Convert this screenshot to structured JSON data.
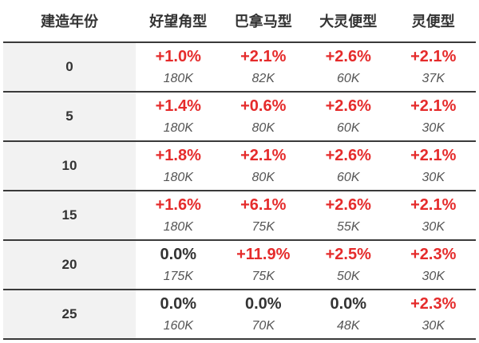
{
  "colors": {
    "increase": "#e52b2b",
    "neutral": "#333333",
    "year_cell_bg": "#f2f2f2",
    "row_border": "#3a3a3a"
  },
  "table": {
    "headers": [
      "建造年份",
      "好望角型",
      "巴拿马型",
      "大灵便型",
      "灵便型"
    ],
    "rows": [
      {
        "year": "0",
        "cells": [
          {
            "change": "+1.0%",
            "value": "180K"
          },
          {
            "change": "+2.1%",
            "value": "82K"
          },
          {
            "change": "+2.6%",
            "value": "60K"
          },
          {
            "change": "+2.1%",
            "value": "37K"
          }
        ]
      },
      {
        "year": "5",
        "cells": [
          {
            "change": "+1.4%",
            "value": "180K"
          },
          {
            "change": "+0.6%",
            "value": "80K"
          },
          {
            "change": "+2.6%",
            "value": "60K"
          },
          {
            "change": "+2.1%",
            "value": "30K"
          }
        ]
      },
      {
        "year": "10",
        "cells": [
          {
            "change": "+1.8%",
            "value": "180K"
          },
          {
            "change": "+2.1%",
            "value": "80K"
          },
          {
            "change": "+2.6%",
            "value": "60K"
          },
          {
            "change": "+2.1%",
            "value": "30K"
          }
        ]
      },
      {
        "year": "15",
        "cells": [
          {
            "change": "+1.6%",
            "value": "180K"
          },
          {
            "change": "+6.1%",
            "value": "75K"
          },
          {
            "change": "+2.6%",
            "value": "55K"
          },
          {
            "change": "+2.1%",
            "value": "30K"
          }
        ]
      },
      {
        "year": "20",
        "cells": [
          {
            "change": "0.0%",
            "value": "175K"
          },
          {
            "change": "+11.9%",
            "value": "75K"
          },
          {
            "change": "+2.5%",
            "value": "50K"
          },
          {
            "change": "+2.3%",
            "value": "30K"
          }
        ]
      },
      {
        "year": "25",
        "cells": [
          {
            "change": "0.0%",
            "value": "160K"
          },
          {
            "change": "0.0%",
            "value": "70K"
          },
          {
            "change": "0.0%",
            "value": "48K"
          },
          {
            "change": "+2.3%",
            "value": "30K"
          }
        ]
      }
    ]
  }
}
